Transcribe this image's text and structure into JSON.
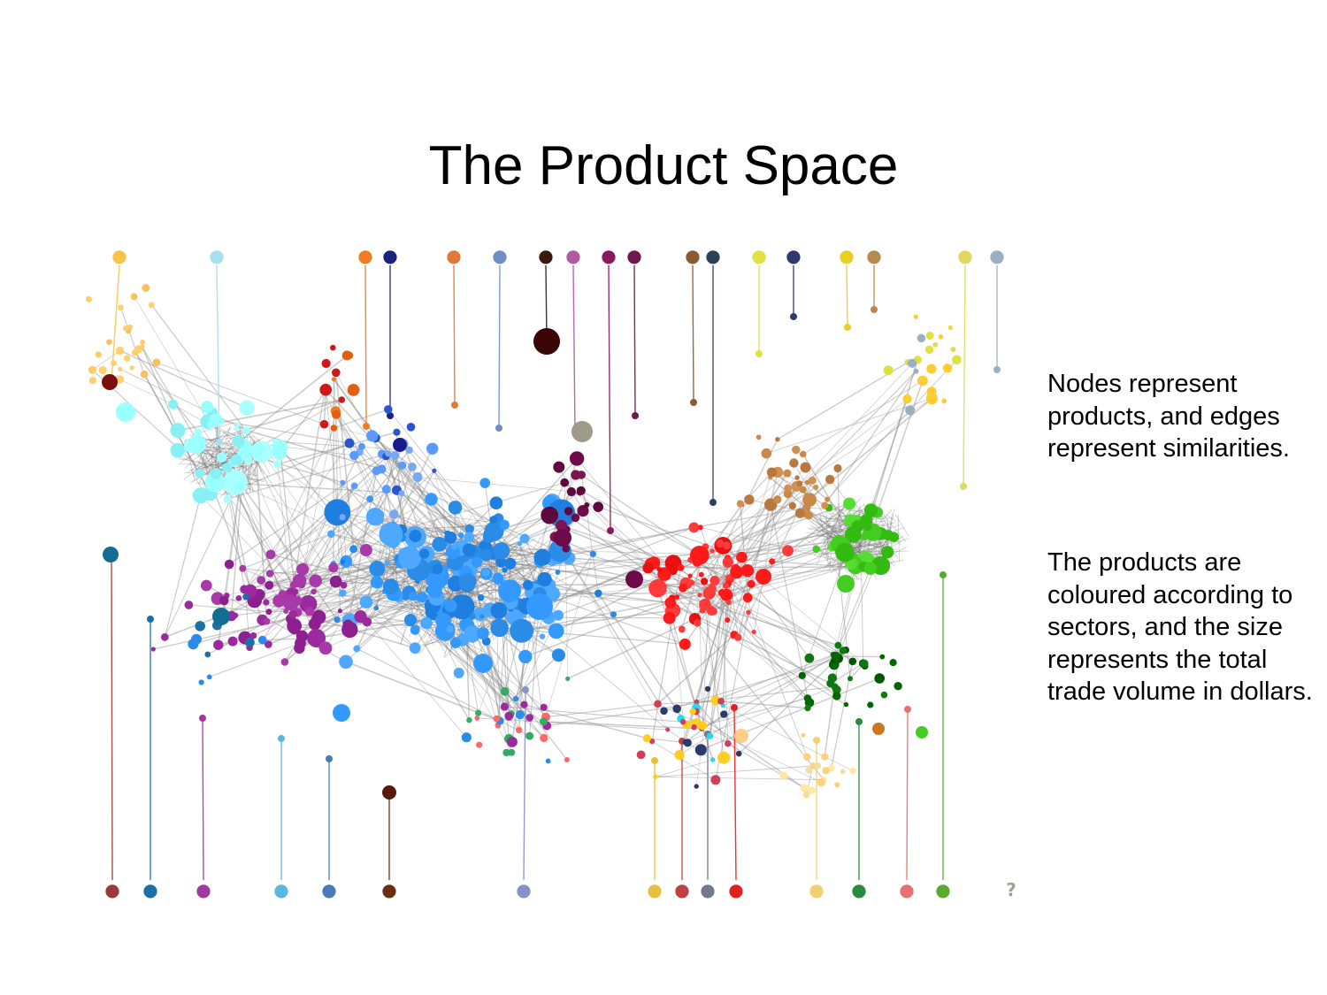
{
  "title": "The Product Space",
  "description": {
    "paragraph1": "Nodes represent products, and edges represent similarities.",
    "paragraph2": "The products are coloured according to sectors, and the size represents the total trade volume in dollars."
  },
  "sectors_top": [
    {
      "icon": "flower-icon",
      "color": "#f9c34a"
    },
    {
      "icon": "laptop-icon",
      "color": "#a6dff0"
    },
    {
      "icon": "tree-icon",
      "color": "#f07b22"
    },
    {
      "icon": "anchor-icon",
      "color": "#1a237e"
    },
    {
      "icon": "pickaxe-icon",
      "color": "#e0783a"
    },
    {
      "icon": "anvil-icon",
      "color": "#6f8fc4"
    },
    {
      "icon": "oil-rig-icon",
      "color": "#3a1a0a"
    },
    {
      "icon": "oil-drop-icon",
      "color": "#b0599e"
    },
    {
      "icon": "chemicals-icon",
      "color": "#8a1a5e"
    },
    {
      "icon": "bottle-icon",
      "color": "#6e1850"
    },
    {
      "icon": "bottles-icon",
      "color": "#8a5a30"
    },
    {
      "icon": "battery-icon",
      "color": "#2e3f5a"
    },
    {
      "icon": "potato-icon",
      "color": "#e0e040"
    },
    {
      "icon": "hide-icon",
      "color": "#2e3a6e"
    },
    {
      "icon": "apple-icon",
      "color": "#e8d020"
    },
    {
      "icon": "can-icon",
      "color": "#b98850"
    },
    {
      "icon": "leaf-icon",
      "color": "#e0d860"
    },
    {
      "icon": "fish-icon",
      "color": "#9ab0c0"
    }
  ],
  "sectors_bottom": [
    {
      "icon": "diamond-icon",
      "color": "#9c3a3a"
    },
    {
      "icon": "airplane-icon",
      "color": "#1c6fa8"
    },
    {
      "icon": "pill-icon",
      "color": "#a03a9e"
    },
    {
      "icon": "water-drop-icon",
      "color": "#5ab8e0"
    },
    {
      "icon": "gears-icon",
      "color": "#4a7ab8"
    },
    {
      "icon": "furniture-icon",
      "color": "#6a2e10"
    },
    {
      "icon": "cow-icon",
      "color": "#8a90c8"
    },
    {
      "icon": "wheat-icon",
      "color": "#e8c040"
    },
    {
      "icon": "box-icon",
      "color": "#c04040"
    },
    {
      "icon": "yarn-icon",
      "color": "#707a8a"
    },
    {
      "icon": "house-icon",
      "color": "#e02020"
    },
    {
      "icon": "cauliflower-icon",
      "color": "#f0d070"
    },
    {
      "icon": "sewing-machine-icon",
      "color": "#2a8a40"
    },
    {
      "icon": "cup-icon",
      "color": "#e87070"
    },
    {
      "icon": "shirt-icon",
      "color": "#5aaa30"
    },
    {
      "icon": "unknown-icon",
      "color": "#a0a090",
      "glyph": "?"
    }
  ]
}
